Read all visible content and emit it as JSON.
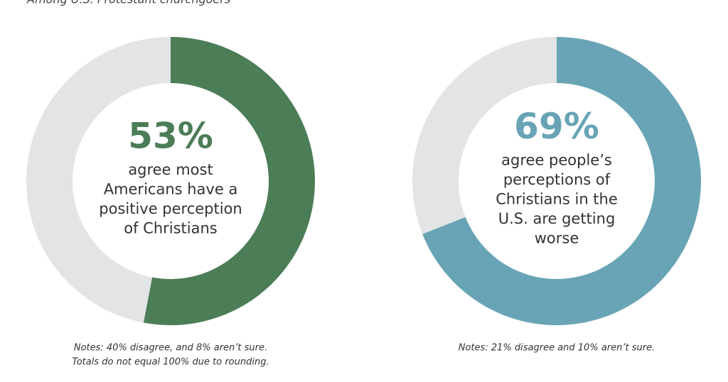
{
  "header": {
    "subtitle": "Among U.S. Protestant churchgoers"
  },
  "chart_data": [
    {
      "type": "donut",
      "value": 53,
      "value_label": "53%",
      "color": "#4b7d56",
      "track_color": "#e3e4e6",
      "text": [
        "agree most",
        "Americans have a",
        "positive perception",
        "of Christians"
      ],
      "notes": [
        "Notes: 40% disagree, and 8% aren’t sure.",
        "Totals do not equal 100% due to rounding."
      ]
    },
    {
      "type": "donut",
      "value": 69,
      "value_label": "69%",
      "color": "#68a4b5",
      "track_color": "#e3e4e6",
      "text": [
        "agree people’s",
        "perceptions of",
        "Christians in the",
        "U.S. are getting",
        "worse"
      ],
      "notes": [
        "Notes: 21% disagree and 10% aren’t sure."
      ]
    }
  ]
}
